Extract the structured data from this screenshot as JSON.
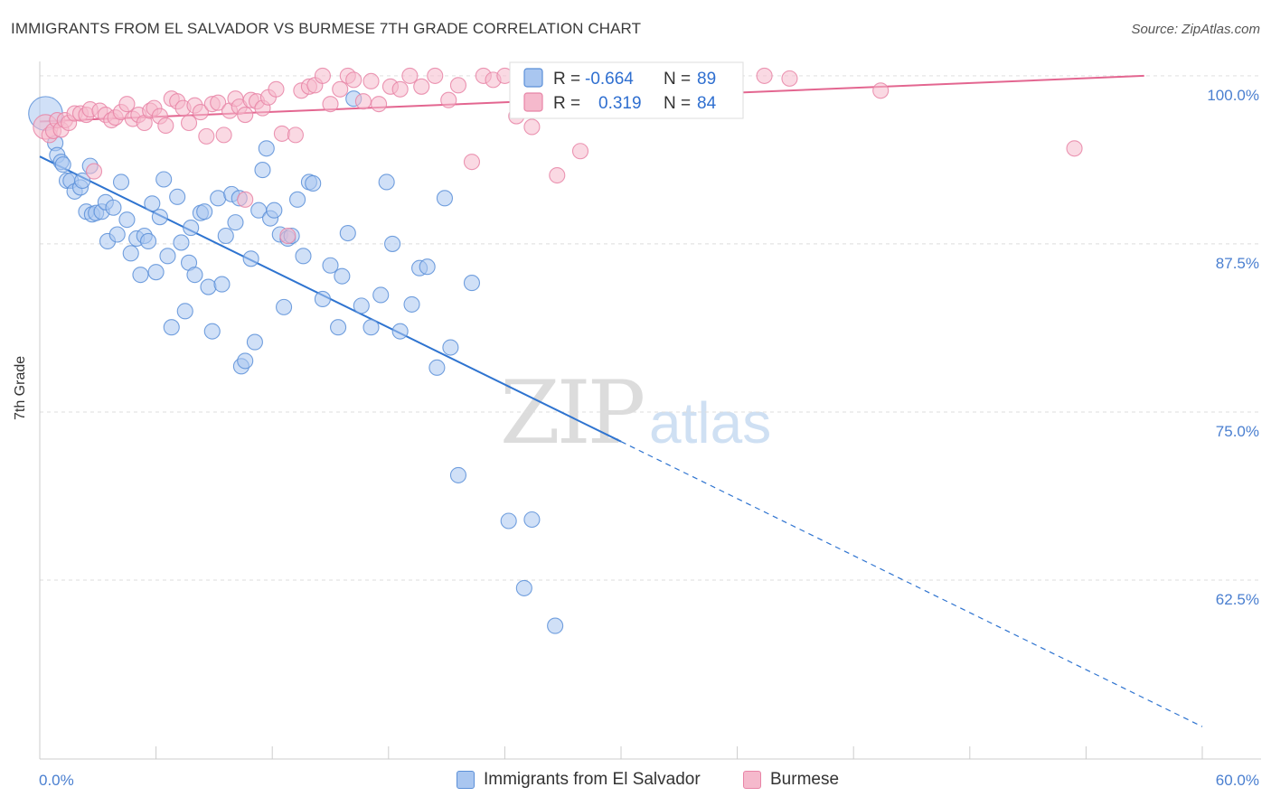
{
  "title": "IMMIGRANTS FROM EL SALVADOR VS BURMESE 7TH GRADE CORRELATION CHART",
  "source": "Source: ZipAtlas.com",
  "watermark": {
    "zip": "ZIP",
    "atlas": "atlas"
  },
  "colors": {
    "blue": "#5b8fd8",
    "blue_fill": "#a9c6f0",
    "blue_line": "#2f74d0",
    "pink": "#e884a6",
    "pink_fill": "#f5b9cc",
    "pink_line": "#e36690",
    "tick_label": "#4a7fd0",
    "grid": "#dddddd"
  },
  "legend_stats": [
    {
      "r_label": "R =",
      "r_value": "-0.664",
      "n_label": "N =",
      "n_value": "89"
    },
    {
      "r_label": "R =",
      "r_value": "0.319",
      "n_label": "N =",
      "n_value": "84"
    }
  ],
  "chart_data": {
    "type": "scatter",
    "title": "IMMIGRANTS FROM EL SALVADOR VS BURMESE 7TH GRADE CORRELATION CHART",
    "xlabel": "",
    "ylabel": "7th Grade",
    "xlim": [
      0,
      60
    ],
    "ylim": [
      50,
      100.8
    ],
    "x_tick_labels": [
      "0.0%",
      "60.0%"
    ],
    "y_ticks": [
      62.5,
      75.0,
      87.5,
      100.0
    ],
    "y_tick_labels": [
      "62.5%",
      "75.0%",
      "87.5%",
      "100.0%"
    ],
    "grid": true,
    "legend_position": "top-center",
    "series": [
      {
        "name": "Immigrants from El Salvador",
        "color": "#5b8fd8",
        "trend": {
          "x0": 0,
          "y0": 94.0,
          "x1": 30,
          "y1": 72.8,
          "dashed_to_x": 60,
          "dashed_to_y": 51.6
        },
        "points": [
          [
            0.3,
            97.2,
            2.2
          ],
          [
            0.8,
            95.0,
            1
          ],
          [
            0.9,
            94.1,
            1
          ],
          [
            1.1,
            93.6,
            1
          ],
          [
            1.2,
            93.4,
            1
          ],
          [
            1.4,
            92.2,
            1
          ],
          [
            1.6,
            92.2,
            1
          ],
          [
            1.8,
            91.4,
            1
          ],
          [
            2.1,
            91.7,
            1
          ],
          [
            2.2,
            92.2,
            1
          ],
          [
            2.4,
            89.9,
            1
          ],
          [
            2.6,
            93.3,
            1
          ],
          [
            2.7,
            89.7,
            1
          ],
          [
            2.9,
            89.8,
            1
          ],
          [
            3.2,
            89.9,
            1
          ],
          [
            3.4,
            90.6,
            1
          ],
          [
            3.5,
            87.7,
            1
          ],
          [
            3.8,
            90.2,
            1
          ],
          [
            4.0,
            88.2,
            1
          ],
          [
            4.2,
            92.1,
            1
          ],
          [
            4.5,
            89.3,
            1
          ],
          [
            4.7,
            86.8,
            1
          ],
          [
            5.0,
            87.9,
            1
          ],
          [
            5.2,
            85.2,
            1
          ],
          [
            5.4,
            88.1,
            1
          ],
          [
            5.6,
            87.7,
            1
          ],
          [
            5.8,
            90.5,
            1
          ],
          [
            6.0,
            85.4,
            1
          ],
          [
            6.2,
            89.5,
            1
          ],
          [
            6.4,
            92.3,
            1
          ],
          [
            6.6,
            86.6,
            1
          ],
          [
            6.8,
            81.3,
            1
          ],
          [
            7.1,
            91.0,
            1
          ],
          [
            7.3,
            87.6,
            1
          ],
          [
            7.5,
            82.5,
            1
          ],
          [
            7.7,
            86.1,
            1
          ],
          [
            7.8,
            88.7,
            1
          ],
          [
            8.0,
            85.2,
            1
          ],
          [
            8.3,
            89.8,
            1
          ],
          [
            8.5,
            89.9,
            1
          ],
          [
            8.7,
            84.3,
            1
          ],
          [
            8.9,
            81.0,
            1
          ],
          [
            9.2,
            90.9,
            1
          ],
          [
            9.4,
            84.5,
            1
          ],
          [
            9.6,
            88.1,
            1
          ],
          [
            9.9,
            91.2,
            1
          ],
          [
            10.1,
            89.1,
            1
          ],
          [
            10.3,
            90.9,
            1
          ],
          [
            10.4,
            78.4,
            1
          ],
          [
            10.6,
            78.8,
            1
          ],
          [
            10.9,
            86.4,
            1
          ],
          [
            11.1,
            80.2,
            1
          ],
          [
            11.3,
            90.0,
            1
          ],
          [
            11.5,
            93.0,
            1
          ],
          [
            11.7,
            94.6,
            1
          ],
          [
            11.9,
            89.4,
            1
          ],
          [
            12.1,
            90.0,
            1
          ],
          [
            12.4,
            88.2,
            1
          ],
          [
            12.6,
            82.8,
            1
          ],
          [
            12.8,
            87.9,
            1
          ],
          [
            13.0,
            88.1,
            1
          ],
          [
            13.3,
            90.8,
            1
          ],
          [
            13.6,
            86.6,
            1
          ],
          [
            13.9,
            92.1,
            1
          ],
          [
            14.1,
            92.0,
            1
          ],
          [
            14.6,
            83.4,
            1
          ],
          [
            15.0,
            85.9,
            1
          ],
          [
            15.4,
            81.3,
            1
          ],
          [
            15.6,
            85.1,
            1
          ],
          [
            15.9,
            88.3,
            1
          ],
          [
            16.2,
            98.3,
            1
          ],
          [
            16.6,
            82.9,
            1
          ],
          [
            17.1,
            81.3,
            1
          ],
          [
            17.6,
            83.7,
            1
          ],
          [
            17.9,
            92.1,
            1
          ],
          [
            18.2,
            87.5,
            1
          ],
          [
            18.6,
            81.0,
            1
          ],
          [
            19.2,
            83.0,
            1
          ],
          [
            19.6,
            85.7,
            1
          ],
          [
            20.0,
            85.8,
            1
          ],
          [
            20.5,
            78.3,
            1
          ],
          [
            20.9,
            90.9,
            1
          ],
          [
            21.2,
            79.8,
            1
          ],
          [
            21.6,
            70.3,
            1
          ],
          [
            22.3,
            84.6,
            1
          ],
          [
            25.0,
            61.9,
            1
          ],
          [
            24.2,
            66.9,
            1
          ],
          [
            25.4,
            67.0,
            1
          ],
          [
            26.6,
            59.1,
            1
          ]
        ]
      },
      {
        "name": "Burmese",
        "color": "#e884a6",
        "trend": {
          "x0": 0,
          "y0": 96.6,
          "x1": 57,
          "y1": 100.0
        },
        "points": [
          [
            0.3,
            96.2,
            1.6
          ],
          [
            0.5,
            95.6,
            1
          ],
          [
            0.7,
            95.9,
            1
          ],
          [
            0.9,
            96.7,
            1
          ],
          [
            1.1,
            96.0,
            1
          ],
          [
            1.3,
            96.7,
            1
          ],
          [
            1.5,
            96.5,
            1
          ],
          [
            1.8,
            97.2,
            1
          ],
          [
            2.1,
            97.2,
            1
          ],
          [
            2.4,
            97.1,
            1
          ],
          [
            2.6,
            97.5,
            1
          ],
          [
            2.8,
            92.9,
            1
          ],
          [
            3.1,
            97.4,
            1
          ],
          [
            3.4,
            97.1,
            1
          ],
          [
            3.7,
            96.7,
            1
          ],
          [
            3.9,
            96.9,
            1
          ],
          [
            4.2,
            97.3,
            1
          ],
          [
            4.5,
            97.9,
            1
          ],
          [
            4.8,
            96.8,
            1
          ],
          [
            5.1,
            97.1,
            1
          ],
          [
            5.4,
            96.5,
            1
          ],
          [
            5.7,
            97.4,
            1
          ],
          [
            5.9,
            97.6,
            1
          ],
          [
            6.2,
            97.0,
            1
          ],
          [
            6.5,
            96.3,
            1
          ],
          [
            6.8,
            98.3,
            1
          ],
          [
            7.1,
            98.1,
            1
          ],
          [
            7.4,
            97.6,
            1
          ],
          [
            7.7,
            96.5,
            1
          ],
          [
            8.0,
            97.8,
            1
          ],
          [
            8.3,
            97.3,
            1
          ],
          [
            8.6,
            95.5,
            1
          ],
          [
            8.9,
            97.9,
            1
          ],
          [
            9.2,
            98.0,
            1
          ],
          [
            9.5,
            95.6,
            1
          ],
          [
            9.8,
            97.4,
            1
          ],
          [
            10.1,
            98.3,
            1
          ],
          [
            10.3,
            97.7,
            1
          ],
          [
            10.6,
            97.1,
            1
          ],
          [
            10.9,
            98.2,
            1
          ],
          [
            11.2,
            98.1,
            1
          ],
          [
            11.5,
            97.6,
            1
          ],
          [
            11.8,
            98.4,
            1
          ],
          [
            12.2,
            99.0,
            1
          ],
          [
            12.5,
            95.7,
            1
          ],
          [
            12.8,
            88.1,
            1
          ],
          [
            13.2,
            95.6,
            1
          ],
          [
            13.5,
            98.9,
            1
          ],
          [
            13.9,
            99.2,
            1
          ],
          [
            14.2,
            99.3,
            1
          ],
          [
            14.6,
            100.0,
            1
          ],
          [
            15.0,
            97.9,
            1
          ],
          [
            15.5,
            99.0,
            1
          ],
          [
            15.9,
            100.0,
            1
          ],
          [
            16.2,
            99.7,
            1
          ],
          [
            16.7,
            98.1,
            1
          ],
          [
            17.1,
            99.6,
            1
          ],
          [
            17.5,
            97.9,
            1
          ],
          [
            18.1,
            99.2,
            1
          ],
          [
            18.6,
            99.0,
            1
          ],
          [
            19.1,
            100.0,
            1
          ],
          [
            19.7,
            99.2,
            1
          ],
          [
            20.4,
            100.0,
            1
          ],
          [
            21.1,
            98.2,
            1
          ],
          [
            21.6,
            99.3,
            1
          ],
          [
            22.3,
            93.6,
            1
          ],
          [
            22.9,
            100.0,
            1
          ],
          [
            23.4,
            99.7,
            1
          ],
          [
            24.0,
            100.0,
            1
          ],
          [
            24.6,
            97.0,
            1
          ],
          [
            25.4,
            96.2,
            1
          ],
          [
            26.2,
            99.0,
            1
          ],
          [
            26.7,
            92.6,
            1
          ],
          [
            27.4,
            99.3,
            1
          ],
          [
            27.9,
            94.4,
            1
          ],
          [
            28.7,
            100.0,
            1
          ],
          [
            29.8,
            99.8,
            1
          ],
          [
            33.2,
            100.0,
            1
          ],
          [
            37.4,
            100.0,
            1
          ],
          [
            38.7,
            99.8,
            1
          ],
          [
            53.4,
            94.6,
            1
          ],
          [
            43.4,
            98.9,
            1
          ],
          [
            25.6,
            99.6,
            1
          ],
          [
            10.6,
            90.8,
            1
          ]
        ]
      }
    ]
  }
}
